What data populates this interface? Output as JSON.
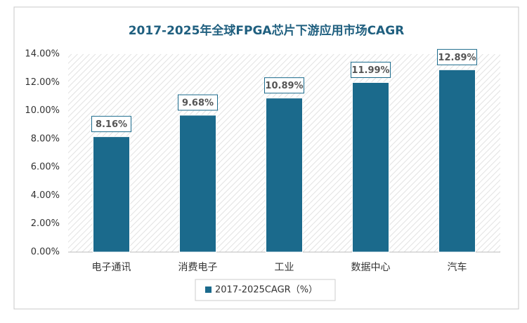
{
  "chart_data": {
    "type": "bar",
    "title": "2017-2025年全球FPGA芯片下游应用市场CAGR",
    "categories": [
      "电子通讯",
      "消费电子",
      "工业",
      "数据中心",
      "汽车"
    ],
    "series": [
      {
        "name": "2017-2025CAGR（%）",
        "color": "#1b6a8c",
        "values": [
          8.16,
          9.68,
          10.89,
          11.99,
          12.89
        ],
        "value_labels": [
          "8.16%",
          "9.68%",
          "10.89%",
          "11.99%",
          "12.89%"
        ]
      }
    ],
    "ylim": [
      0,
      14
    ],
    "yticks": [
      {
        "value": 0,
        "label": "0.00%"
      },
      {
        "value": 2,
        "label": "2.00%"
      },
      {
        "value": 4,
        "label": "4.00%"
      },
      {
        "value": 6,
        "label": "6.00%"
      },
      {
        "value": 8,
        "label": "8.00%"
      },
      {
        "value": 10,
        "label": "10.00%"
      },
      {
        "value": 12,
        "label": "12.00%"
      },
      {
        "value": 14,
        "label": "14.00%"
      }
    ],
    "legend": "bottom"
  }
}
